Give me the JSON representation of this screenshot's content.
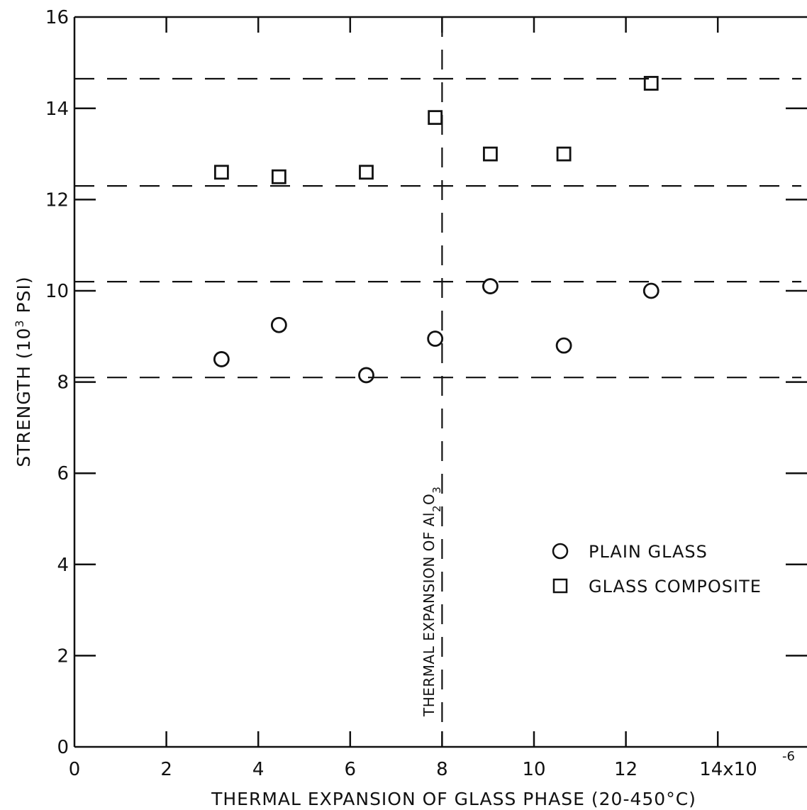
{
  "chart_data": {
    "type": "scatter",
    "xlabel": "THERMAL EXPANSION OF GLASS PHASE (20-450°C)",
    "ylabel_main": "STRENGTH (10",
    "ylabel_sup": "3",
    "ylabel_tail": " PSI)",
    "x_ticks": [
      {
        "value": 0,
        "label": "0"
      },
      {
        "value": 2,
        "label": "2"
      },
      {
        "value": 4,
        "label": "4"
      },
      {
        "value": 6,
        "label": "6"
      },
      {
        "value": 8,
        "label": "8"
      },
      {
        "value": 10,
        "label": "10"
      },
      {
        "value": 12,
        "label": "12"
      },
      {
        "value": 14,
        "label": "14x10"
      }
    ],
    "x_multiplier_sup": "-6",
    "y_ticks": [
      {
        "value": 0,
        "label": "0"
      },
      {
        "value": 2,
        "label": "2"
      },
      {
        "value": 4,
        "label": "4"
      },
      {
        "value": 6,
        "label": "6"
      },
      {
        "value": 8,
        "label": "8"
      },
      {
        "value": 10,
        "label": "10"
      },
      {
        "value": 12,
        "label": "12"
      },
      {
        "value": 14,
        "label": "14"
      },
      {
        "value": 16,
        "label": "16"
      }
    ],
    "xlim": [
      0,
      15.8
    ],
    "ylim": [
      0,
      16
    ],
    "grid": false,
    "legend_position": "lower-right",
    "series": [
      {
        "name": "PLAIN GLASS",
        "marker": "circle",
        "points": [
          {
            "x": 3.2,
            "y": 8.5
          },
          {
            "x": 4.45,
            "y": 9.25
          },
          {
            "x": 6.35,
            "y": 8.15
          },
          {
            "x": 7.85,
            "y": 8.95
          },
          {
            "x": 9.05,
            "y": 10.1
          },
          {
            "x": 10.65,
            "y": 8.8
          },
          {
            "x": 12.55,
            "y": 10.0
          }
        ]
      },
      {
        "name": "GLASS COMPOSITE",
        "marker": "square",
        "points": [
          {
            "x": 3.2,
            "y": 12.6
          },
          {
            "x": 4.45,
            "y": 12.5
          },
          {
            "x": 6.35,
            "y": 12.6
          },
          {
            "x": 7.85,
            "y": 13.8
          },
          {
            "x": 9.05,
            "y": 13.0
          },
          {
            "x": 10.65,
            "y": 13.0
          },
          {
            "x": 12.55,
            "y": 14.55
          }
        ]
      }
    ],
    "reference_lines": {
      "horizontal": [
        14.65,
        12.3,
        10.2,
        8.1
      ],
      "vertical": {
        "x": 8.0,
        "label_main": "THERMAL EXPANSION OF Al",
        "label_sub1": "2",
        "label_mid": "O",
        "label_sub2": "3"
      }
    }
  }
}
